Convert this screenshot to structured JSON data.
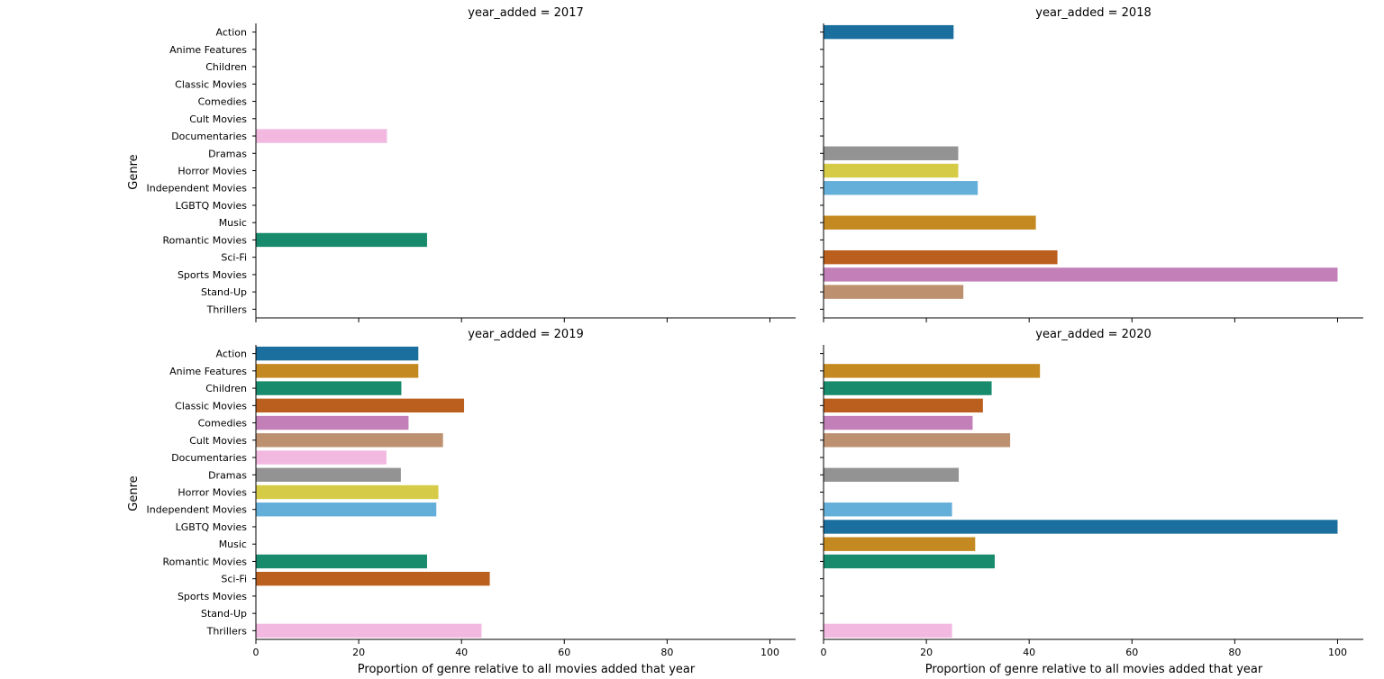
{
  "chart_data": {
    "type": "bar",
    "orientation": "horizontal",
    "layout": "2x2 facet grid, shared x and y axes",
    "categories": [
      "Action",
      "Anime Features",
      "Children",
      "Classic Movies",
      "Comedies",
      "Cult Movies",
      "Documentaries",
      "Dramas",
      "Horror Movies",
      "Independent Movies",
      "LGBTQ Movies",
      "Music",
      "Romantic Movies",
      "Sci-Fi",
      "Sports Movies",
      "Stand-Up",
      "Thrillers"
    ],
    "palette": [
      "#1a6f9f",
      "#c48920",
      "#178b6b",
      "#bb5f1e",
      "#c27fb8",
      "#bd906f",
      "#f2b8e0",
      "#939393",
      "#d6cb47",
      "#64afd9"
    ],
    "ylabel": "Genre",
    "xlabel": "Proportion of genre relative to all movies added that year",
    "xlim": [
      0,
      105
    ],
    "xticks": [
      0,
      20,
      40,
      60,
      80,
      100
    ],
    "grid": false,
    "legend": "none",
    "panels": [
      {
        "title": "year_added = 2017",
        "values": [
          null,
          null,
          null,
          null,
          null,
          null,
          25.5,
          null,
          null,
          null,
          null,
          null,
          33.3,
          null,
          null,
          null,
          null
        ]
      },
      {
        "title": "year_added = 2018",
        "values": [
          25.3,
          null,
          null,
          null,
          null,
          null,
          null,
          26.2,
          26.2,
          30.0,
          null,
          41.3,
          null,
          45.5,
          100,
          27.2,
          null
        ]
      },
      {
        "title": "year_added = 2019",
        "values": [
          31.6,
          31.6,
          28.3,
          40.5,
          29.7,
          36.4,
          25.4,
          28.2,
          35.5,
          35.1,
          null,
          null,
          33.3,
          45.5,
          null,
          null,
          43.9
        ]
      },
      {
        "title": "year_added = 2020",
        "values": [
          null,
          42.1,
          32.7,
          31.0,
          29.0,
          36.3,
          null,
          26.3,
          null,
          25.0,
          100,
          29.5,
          33.3,
          null,
          null,
          null,
          25.0
        ]
      }
    ]
  }
}
